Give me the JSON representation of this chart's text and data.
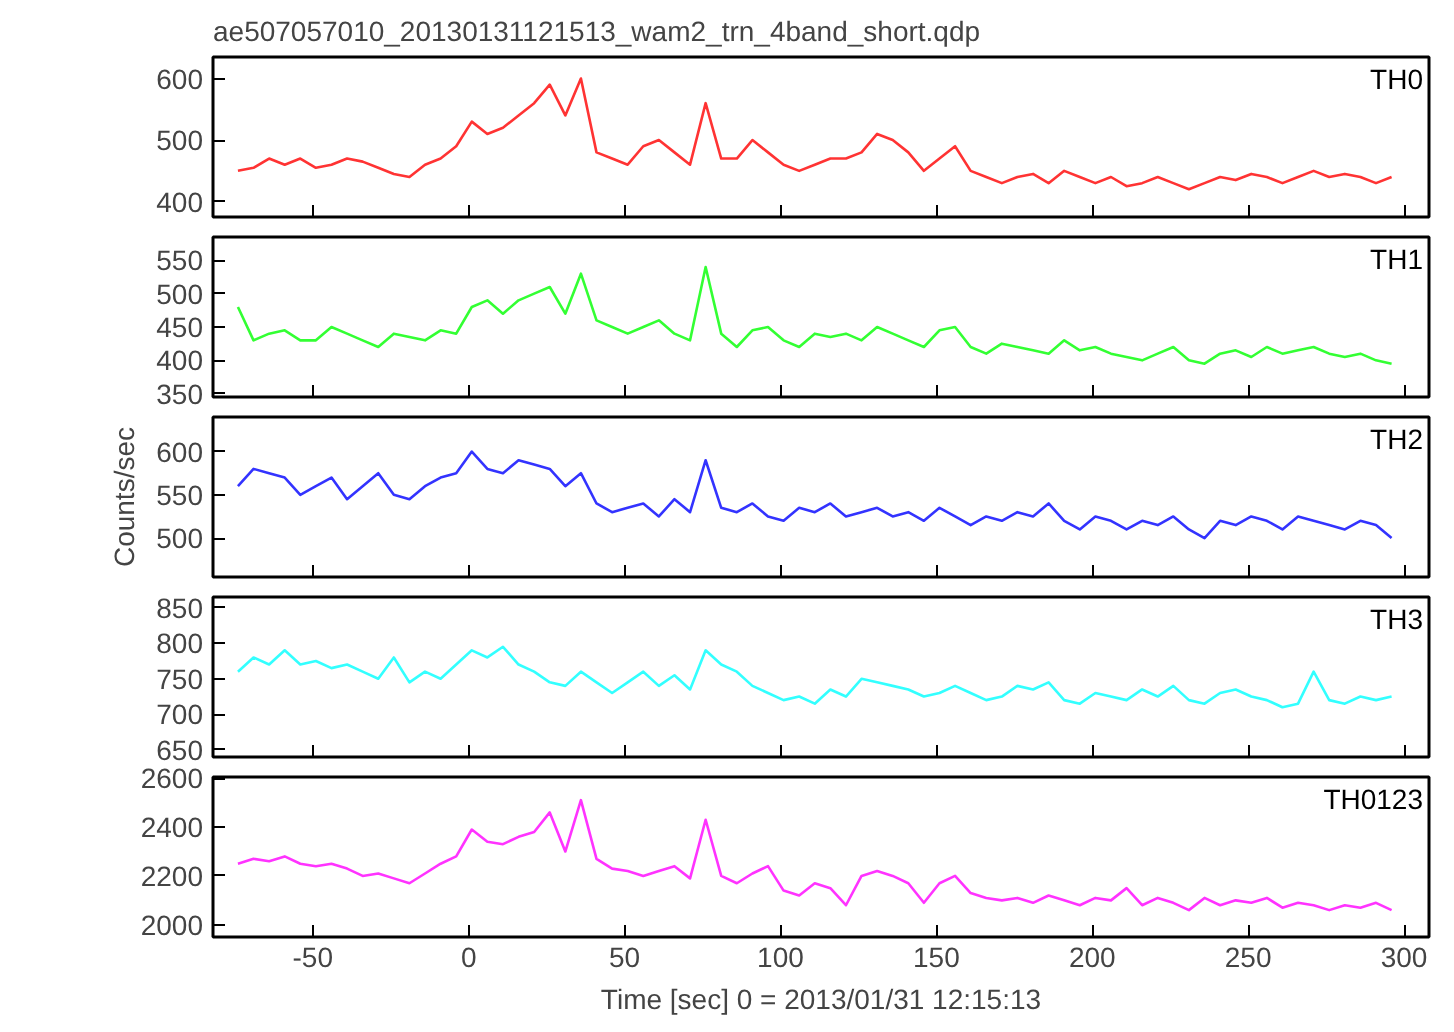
{
  "chart_data": [
    {
      "type": "line",
      "title": "ae507057010_20130131121513_wam2_trn_4band_short.qdp",
      "x": [
        -74,
        -69,
        -64,
        -59,
        -54,
        -49,
        -44,
        -39,
        -34,
        -29,
        -24,
        -19,
        -14,
        -9,
        -4,
        1,
        6,
        11,
        16,
        21,
        26,
        31,
        36,
        41,
        46,
        51,
        56,
        61,
        66,
        71,
        76,
        81,
        86,
        91,
        96,
        101,
        106,
        111,
        116,
        121,
        126,
        131,
        136,
        141,
        146,
        151,
        156,
        161,
        166,
        171,
        176,
        181,
        186,
        191,
        196,
        201,
        206,
        211,
        216,
        221,
        226,
        231,
        236,
        241,
        246,
        251,
        256,
        261,
        266,
        271,
        276,
        281,
        286,
        291,
        296
      ],
      "xlim": [
        -82,
        308
      ],
      "xticks": [
        -50,
        0,
        50,
        100,
        150,
        200,
        250,
        300
      ],
      "ylim": [
        375,
        635
      ],
      "yticks": [
        400,
        500,
        600
      ],
      "tick_labels": "y",
      "series": [
        {
          "name": "TH0",
          "color": "#ff3333",
          "values": [
            450,
            455,
            470,
            460,
            470,
            455,
            460,
            470,
            465,
            455,
            445,
            440,
            460,
            470,
            490,
            530,
            510,
            520,
            540,
            560,
            590,
            540,
            600,
            480,
            470,
            460,
            490,
            500,
            480,
            460,
            560,
            470,
            470,
            500,
            480,
            460,
            450,
            460,
            470,
            470,
            480,
            510,
            500,
            480,
            450,
            470,
            490,
            450,
            440,
            430,
            440,
            445,
            430,
            450,
            440,
            430,
            440,
            425,
            430,
            440,
            430,
            420,
            430,
            440,
            435,
            445,
            440,
            430,
            440,
            450,
            440,
            445,
            440,
            430,
            440
          ]
        }
      ]
    },
    {
      "type": "line",
      "x": [
        -74,
        -69,
        -64,
        -59,
        -54,
        -49,
        -44,
        -39,
        -34,
        -29,
        -24,
        -19,
        -14,
        -9,
        -4,
        1,
        6,
        11,
        16,
        21,
        26,
        31,
        36,
        41,
        46,
        51,
        56,
        61,
        66,
        71,
        76,
        81,
        86,
        91,
        96,
        101,
        106,
        111,
        116,
        121,
        126,
        131,
        136,
        141,
        146,
        151,
        156,
        161,
        166,
        171,
        176,
        181,
        186,
        191,
        196,
        201,
        206,
        211,
        216,
        221,
        226,
        231,
        236,
        241,
        246,
        251,
        256,
        261,
        266,
        271,
        276,
        281,
        286,
        291,
        296
      ],
      "xlim": [
        -82,
        308
      ],
      "xticks": [
        -50,
        0,
        50,
        100,
        150,
        200,
        250,
        300
      ],
      "ylim": [
        345,
        585
      ],
      "yticks": [
        350,
        400,
        450,
        500,
        550
      ],
      "tick_labels": "y",
      "series": [
        {
          "name": "TH1",
          "color": "#33ff33",
          "values": [
            480,
            430,
            440,
            445,
            430,
            430,
            450,
            440,
            430,
            420,
            440,
            435,
            430,
            445,
            440,
            480,
            490,
            470,
            490,
            500,
            510,
            470,
            530,
            460,
            450,
            440,
            450,
            460,
            440,
            430,
            540,
            440,
            420,
            445,
            450,
            430,
            420,
            440,
            435,
            440,
            430,
            450,
            440,
            430,
            420,
            445,
            450,
            420,
            410,
            425,
            420,
            415,
            410,
            430,
            415,
            420,
            410,
            405,
            400,
            410,
            420,
            400,
            395,
            410,
            415,
            405,
            420,
            410,
            415,
            420,
            410,
            405,
            410,
            400,
            395
          ]
        }
      ]
    },
    {
      "type": "line",
      "ylabel": "Counts/sec",
      "x": [
        -74,
        -69,
        -64,
        -59,
        -54,
        -49,
        -44,
        -39,
        -34,
        -29,
        -24,
        -19,
        -14,
        -9,
        -4,
        1,
        6,
        11,
        16,
        21,
        26,
        31,
        36,
        41,
        46,
        51,
        56,
        61,
        66,
        71,
        76,
        81,
        86,
        91,
        96,
        101,
        106,
        111,
        116,
        121,
        126,
        131,
        136,
        141,
        146,
        151,
        156,
        161,
        166,
        171,
        176,
        181,
        186,
        191,
        196,
        201,
        206,
        211,
        216,
        221,
        226,
        231,
        236,
        241,
        246,
        251,
        256,
        261,
        266,
        271,
        276,
        281,
        286,
        291,
        296
      ],
      "xlim": [
        -82,
        308
      ],
      "xticks": [
        -50,
        0,
        50,
        100,
        150,
        200,
        250,
        300
      ],
      "ylim": [
        455,
        640
      ],
      "yticks": [
        500,
        550,
        600
      ],
      "tick_labels": "y",
      "series": [
        {
          "name": "TH2",
          "color": "#3333ff",
          "values": [
            560,
            580,
            575,
            570,
            550,
            560,
            570,
            545,
            560,
            575,
            550,
            545,
            560,
            570,
            575,
            600,
            580,
            575,
            590,
            585,
            580,
            560,
            575,
            540,
            530,
            535,
            540,
            525,
            545,
            530,
            590,
            535,
            530,
            540,
            525,
            520,
            535,
            530,
            540,
            525,
            530,
            535,
            525,
            530,
            520,
            535,
            525,
            515,
            525,
            520,
            530,
            525,
            540,
            520,
            510,
            525,
            520,
            510,
            520,
            515,
            525,
            510,
            500,
            520,
            515,
            525,
            520,
            510,
            525,
            520,
            515,
            510,
            520,
            515,
            500
          ]
        }
      ]
    },
    {
      "type": "line",
      "x": [
        -74,
        -69,
        -64,
        -59,
        -54,
        -49,
        -44,
        -39,
        -34,
        -29,
        -24,
        -19,
        -14,
        -9,
        -4,
        1,
        6,
        11,
        16,
        21,
        26,
        31,
        36,
        41,
        46,
        51,
        56,
        61,
        66,
        71,
        76,
        81,
        86,
        91,
        96,
        101,
        106,
        111,
        116,
        121,
        126,
        131,
        136,
        141,
        146,
        151,
        156,
        161,
        166,
        171,
        176,
        181,
        186,
        191,
        196,
        201,
        206,
        211,
        216,
        221,
        226,
        231,
        236,
        241,
        246,
        251,
        256,
        261,
        266,
        271,
        276,
        281,
        286,
        291,
        296
      ],
      "xlim": [
        -82,
        308
      ],
      "xticks": [
        -50,
        0,
        50,
        100,
        150,
        200,
        250,
        300
      ],
      "ylim": [
        640,
        865
      ],
      "yticks": [
        650,
        700,
        750,
        800,
        850
      ],
      "tick_labels": "y",
      "series": [
        {
          "name": "TH3",
          "color": "#33ffff",
          "values": [
            760,
            780,
            770,
            790,
            770,
            775,
            765,
            770,
            760,
            750,
            780,
            745,
            760,
            750,
            770,
            790,
            780,
            795,
            770,
            760,
            745,
            740,
            760,
            745,
            730,
            745,
            760,
            740,
            755,
            735,
            790,
            770,
            760,
            740,
            730,
            720,
            725,
            715,
            735,
            725,
            750,
            745,
            740,
            735,
            725,
            730,
            740,
            730,
            720,
            725,
            740,
            735,
            745,
            720,
            715,
            730,
            725,
            720,
            735,
            725,
            740,
            720,
            715,
            730,
            735,
            725,
            720,
            710,
            715,
            760,
            720,
            715,
            725,
            720,
            725
          ]
        }
      ]
    },
    {
      "type": "line",
      "xlabel": "Time [sec] 0 = 2013/01/31 12:15:13",
      "x": [
        -74,
        -69,
        -64,
        -59,
        -54,
        -49,
        -44,
        -39,
        -34,
        -29,
        -24,
        -19,
        -14,
        -9,
        -4,
        1,
        6,
        11,
        16,
        21,
        26,
        31,
        36,
        41,
        46,
        51,
        56,
        61,
        66,
        71,
        76,
        81,
        86,
        91,
        96,
        101,
        106,
        111,
        116,
        121,
        126,
        131,
        136,
        141,
        146,
        151,
        156,
        161,
        166,
        171,
        176,
        181,
        186,
        191,
        196,
        201,
        206,
        211,
        216,
        221,
        226,
        231,
        236,
        241,
        246,
        251,
        256,
        261,
        266,
        271,
        276,
        281,
        286,
        291,
        296
      ],
      "xlim": [
        -82,
        308
      ],
      "xticks": [
        -50,
        0,
        50,
        100,
        150,
        200,
        250,
        300
      ],
      "ylim": [
        1950,
        2605
      ],
      "yticks": [
        2000,
        2200,
        2400,
        2600
      ],
      "series": [
        {
          "name": "TH0123",
          "color": "#ff33ff",
          "values": [
            2250,
            2270,
            2260,
            2280,
            2250,
            2240,
            2250,
            2230,
            2200,
            2210,
            2190,
            2170,
            2210,
            2250,
            2280,
            2390,
            2340,
            2330,
            2360,
            2380,
            2460,
            2300,
            2510,
            2270,
            2230,
            2220,
            2200,
            2220,
            2240,
            2190,
            2430,
            2200,
            2170,
            2210,
            2240,
            2140,
            2120,
            2170,
            2150,
            2080,
            2200,
            2220,
            2200,
            2170,
            2090,
            2170,
            2200,
            2130,
            2110,
            2100,
            2110,
            2090,
            2120,
            2100,
            2080,
            2110,
            2100,
            2150,
            2080,
            2110,
            2090,
            2060,
            2110,
            2080,
            2100,
            2090,
            2110,
            2070,
            2090,
            2080,
            2060,
            2080,
            2070,
            2090,
            2060
          ]
        }
      ]
    }
  ]
}
